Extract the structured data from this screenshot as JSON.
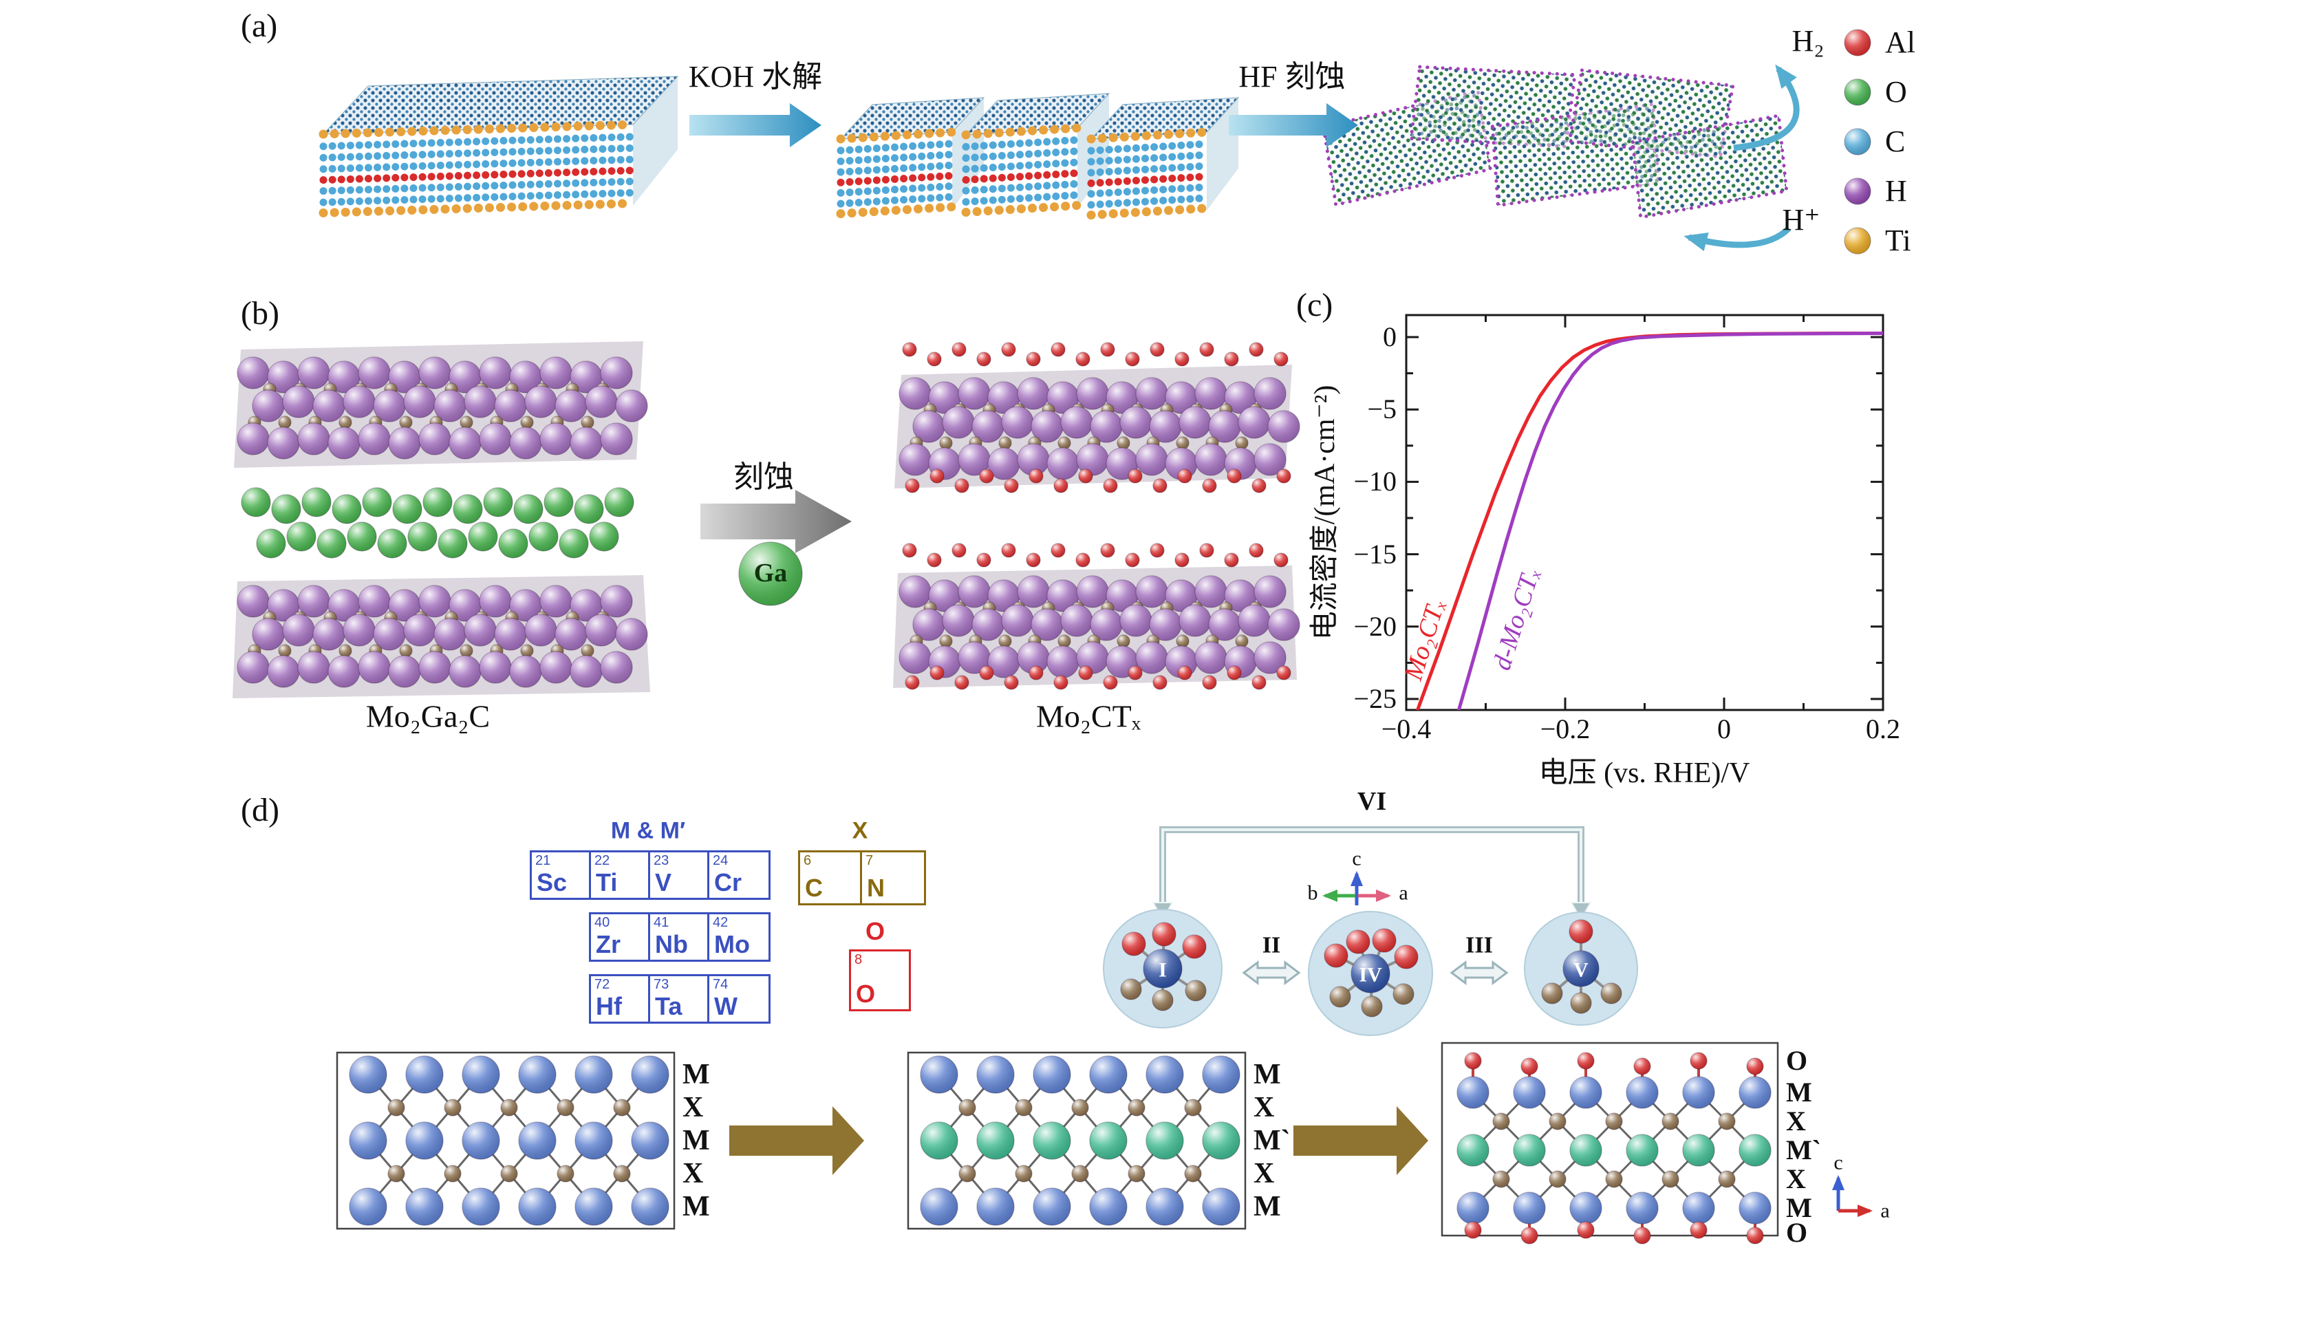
{
  "panels": {
    "a": {
      "label": "(a)",
      "step1_label": "KOH 水解",
      "step2_label": "HF 刻蚀",
      "cycle": {
        "product": "H₂",
        "reactant": "H⁺"
      },
      "legend": {
        "items": [
          {
            "symbol": "Al",
            "color": "#d92b2b"
          },
          {
            "symbol": "O",
            "color": "#3fae4a"
          },
          {
            "symbol": "C",
            "color": "#4fa8d8"
          },
          {
            "symbol": "H",
            "color": "#8e44ad"
          },
          {
            "symbol": "Ti",
            "color": "#e3a51e"
          }
        ]
      }
    },
    "b": {
      "label": "(b)",
      "precursor": "Mo₂Ga₂C",
      "etch_label": "刻蚀",
      "etched_atom": "Ga",
      "product": "Mo₂CTₓ"
    },
    "c": {
      "label": "(c)"
    },
    "d": {
      "label": "(d)",
      "mm_title": "M & M′",
      "mm_cells": [
        {
          "z": "21",
          "sym": "Sc"
        },
        {
          "z": "22",
          "sym": "Ti"
        },
        {
          "z": "23",
          "sym": "V"
        },
        {
          "z": "24",
          "sym": "Cr"
        },
        {
          "z": "40",
          "sym": "Zr"
        },
        {
          "z": "41",
          "sym": "Nb"
        },
        {
          "z": "42",
          "sym": "Mo"
        },
        {
          "z": "72",
          "sym": "Hf"
        },
        {
          "z": "73",
          "sym": "Ta"
        },
        {
          "z": "74",
          "sym": "W"
        }
      ],
      "x_title": "X",
      "x_cells": [
        {
          "z": "6",
          "sym": "C"
        },
        {
          "z": "7",
          "sym": "N"
        }
      ],
      "o_label": "O",
      "o_cell": {
        "z": "8",
        "sym": "O"
      },
      "roman": {
        "i": "I",
        "ii": "II",
        "iii": "III",
        "iv": "IV",
        "v": "V",
        "vi": "VI"
      },
      "axes_top": {
        "a": "a",
        "b": "b",
        "c": "c"
      },
      "axes_bottom": {
        "a": "a",
        "c": "c"
      },
      "stack1": [
        "M",
        "X",
        "M",
        "X",
        "M"
      ],
      "stack2": [
        "M",
        "X",
        "M`",
        "X",
        "M"
      ],
      "stack3": [
        "O",
        "M",
        "X",
        "M`",
        "X",
        "M",
        "O"
      ]
    }
  },
  "chart_data": {
    "type": "line",
    "title": "",
    "xlabel": "电压 (vs. RHE)/V",
    "ylabel": "电流密度/(mA·cm⁻²)",
    "xlim": [
      -0.4,
      0.2
    ],
    "ylim": [
      -25.8,
      1.5
    ],
    "grid": false,
    "legend_position": "on-curve",
    "xticks": [
      -0.4,
      -0.2,
      0,
      0.2
    ],
    "xtick_labels": [
      "−0.4",
      "−0.2",
      "0",
      "0.2"
    ],
    "xminor": [
      -0.3,
      -0.1,
      0.1
    ],
    "yticks": [
      0,
      -5,
      -10,
      -15,
      -20,
      -25
    ],
    "ytick_labels": [
      "0",
      "−5",
      "−10",
      "−15",
      "−20",
      "−25"
    ],
    "yminor": [
      -2.5,
      -7.5,
      -12.5,
      -17.5,
      -22.5
    ],
    "series": [
      {
        "name": "Mo₂CTₓ",
        "color": "#e8262c",
        "x": [
          -0.386,
          -0.372,
          -0.358,
          -0.344,
          -0.33,
          -0.316,
          -0.302,
          -0.288,
          -0.274,
          -0.26,
          -0.246,
          -0.232,
          -0.218,
          -0.204,
          -0.19,
          -0.176,
          -0.162,
          -0.148,
          -0.134,
          -0.12,
          -0.1,
          -0.06,
          -0.02,
          0.02,
          0.06,
          0.1,
          0.15,
          0.2
        ],
        "y": [
          -25.8,
          -23.7,
          -21.6,
          -19.4,
          -17.2,
          -15.0,
          -12.9,
          -10.8,
          -8.9,
          -7.1,
          -5.5,
          -4.1,
          -3.0,
          -2.1,
          -1.4,
          -0.9,
          -0.55,
          -0.3,
          -0.15,
          -0.05,
          0.05,
          0.15,
          0.2,
          0.22,
          0.24,
          0.25,
          0.26,
          0.26
        ]
      },
      {
        "name": "d-Mo₂CTₓ",
        "color": "#a03cc0",
        "x": [
          -0.334,
          -0.322,
          -0.31,
          -0.298,
          -0.286,
          -0.274,
          -0.262,
          -0.25,
          -0.238,
          -0.226,
          -0.214,
          -0.202,
          -0.19,
          -0.178,
          -0.166,
          -0.154,
          -0.142,
          -0.13,
          -0.11,
          -0.08,
          -0.04,
          0,
          0.05,
          0.1,
          0.15,
          0.2
        ],
        "y": [
          -25.8,
          -23.5,
          -21.2,
          -18.8,
          -16.4,
          -14.1,
          -11.9,
          -9.8,
          -7.9,
          -6.2,
          -4.8,
          -3.6,
          -2.6,
          -1.8,
          -1.2,
          -0.75,
          -0.45,
          -0.25,
          -0.05,
          0.05,
          0.12,
          0.18,
          0.22,
          0.24,
          0.25,
          0.26
        ]
      }
    ]
  }
}
